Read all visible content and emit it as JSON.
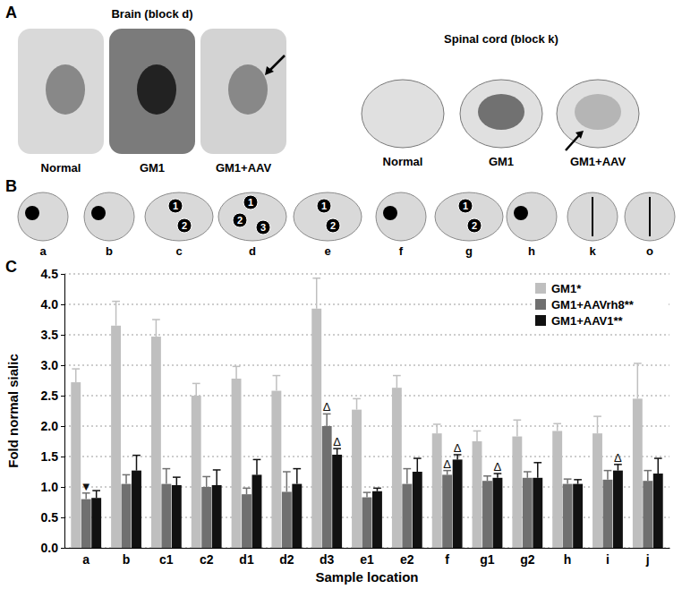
{
  "figure": {
    "panel_a": {
      "label": "A",
      "brain_title": "Brain (block d)",
      "brain_labels": [
        "Normal",
        "GM1",
        "GM1+AAV"
      ],
      "cord_title": "Spinal cord (block k)",
      "cord_labels": [
        "Normal",
        "GM1",
        "GM1+AAV"
      ]
    },
    "panel_b": {
      "label": "B",
      "slices": [
        {
          "label": "a",
          "sites": [],
          "marker": "dot"
        },
        {
          "label": "b",
          "sites": [],
          "marker": "dot"
        },
        {
          "label": "c",
          "sites": [
            1,
            2
          ],
          "marker": null
        },
        {
          "label": "d",
          "sites": [
            1,
            3,
            2
          ],
          "marker": null
        },
        {
          "label": "e",
          "sites": [
            1,
            2
          ],
          "marker": null
        },
        {
          "label": "f",
          "sites": [],
          "marker": "dot"
        },
        {
          "label": "g",
          "sites": [
            1,
            2
          ],
          "marker": null
        },
        {
          "label": "h",
          "sites": [],
          "marker": "dot"
        },
        {
          "label": "k",
          "sites": [],
          "marker": "line"
        },
        {
          "label": "o",
          "sites": [],
          "marker": "line"
        }
      ]
    },
    "panel_c": {
      "label": "C"
    }
  },
  "chart_data": {
    "type": "bar",
    "x_label": "Sample location",
    "y_label": "Fold normal sialic",
    "categories": [
      "a",
      "b",
      "c1",
      "c2",
      "d1",
      "d2",
      "d3",
      "e1",
      "e2",
      "f",
      "g1",
      "g2",
      "h",
      "i",
      "j"
    ],
    "series": [
      {
        "name": "GM1*",
        "color": "#bfbfbf",
        "values": [
          2.72,
          3.65,
          3.47,
          2.5,
          2.78,
          2.58,
          3.93,
          2.27,
          2.63,
          1.88,
          1.75,
          1.83,
          1.92,
          1.88,
          2.45
        ],
        "errors": [
          0.22,
          0.4,
          0.28,
          0.2,
          0.2,
          0.25,
          0.5,
          0.18,
          0.2,
          0.15,
          0.17,
          0.27,
          0.12,
          0.28,
          0.58
        ]
      },
      {
        "name": "GM1+AAVrh8**",
        "color": "#707070",
        "values": [
          0.8,
          1.05,
          1.05,
          1.0,
          0.88,
          0.92,
          2.0,
          0.83,
          1.05,
          1.2,
          1.1,
          1.15,
          1.05,
          1.12,
          1.1
        ],
        "errors": [
          0.1,
          0.15,
          0.25,
          0.17,
          0.1,
          0.33,
          0.2,
          0.08,
          0.25,
          0.07,
          0.08,
          0.1,
          0.08,
          0.15,
          0.17
        ]
      },
      {
        "name": "GM1+AAV1**",
        "color": "#111111",
        "values": [
          0.82,
          1.27,
          1.03,
          1.03,
          1.2,
          1.05,
          1.53,
          0.93,
          1.25,
          1.45,
          1.15,
          1.15,
          1.05,
          1.27,
          1.22
        ],
        "errors": [
          0.12,
          0.25,
          0.13,
          0.25,
          0.25,
          0.25,
          0.1,
          0.05,
          0.22,
          0.08,
          0.07,
          0.25,
          0.07,
          0.1,
          0.25
        ]
      }
    ],
    "annotations": [
      {
        "text": "▼",
        "category": "a",
        "series": "GM1+AAVrh8**"
      },
      {
        "text": "Δ",
        "category": "d3",
        "series": "GM1+AAVrh8**"
      },
      {
        "text": "Δ",
        "category": "d3",
        "series": "GM1+AAV1**"
      },
      {
        "text": "Δ",
        "category": "f",
        "series": "GM1+AAVrh8**"
      },
      {
        "text": "Δ",
        "category": "f",
        "series": "GM1+AAV1**"
      },
      {
        "text": "Δ",
        "category": "g1",
        "series": "GM1+AAV1**"
      },
      {
        "text": "Δ",
        "category": "i",
        "series": "GM1+AAV1**"
      }
    ],
    "ylim": [
      0,
      4.5
    ],
    "yticks": [
      {
        "value": 0,
        "label": "0.0"
      },
      {
        "value": 0.5,
        "label": "0.5"
      },
      {
        "value": 1,
        "label": "1.0"
      },
      {
        "value": 1.5,
        "label": "1.5"
      },
      {
        "value": 2,
        "label": "2.0"
      },
      {
        "value": 2.5,
        "label": "2.5"
      },
      {
        "value": 3,
        "label": "3.0"
      },
      {
        "value": 3.5,
        "label": "3.5"
      },
      {
        "value": 4,
        "label": "4.0"
      },
      {
        "value": 4.5,
        "label": "4.5"
      }
    ],
    "grid": true,
    "legend": "upper right"
  }
}
